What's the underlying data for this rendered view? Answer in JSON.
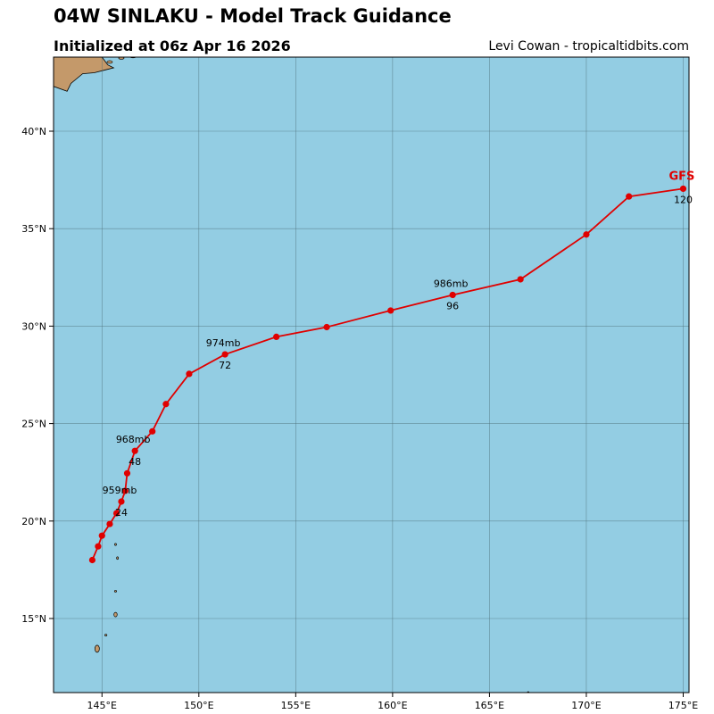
{
  "header": {
    "title": "04W SINLAKU - Model Track Guidance",
    "subtitle": "Initialized at 06z Apr 16 2026",
    "credit": "Levi Cowan - tropicaltidbits.com"
  },
  "colors": {
    "ocean": "#93cde3",
    "land": "#c4996a",
    "track": "#e00000",
    "model_label": "#e00000",
    "grid": "#4d6f78"
  },
  "map": {
    "projection": "equirectangular",
    "lon_range": [
      142.5,
      175.3
    ],
    "lat_range": [
      11.2,
      43.8
    ],
    "lon_ticks": [
      145,
      150,
      155,
      160,
      165,
      170,
      175
    ],
    "lon_tick_labels": [
      "145°E",
      "150°E",
      "155°E",
      "160°E",
      "165°E",
      "170°E",
      "175°E"
    ],
    "lat_ticks": [
      15,
      20,
      25,
      30,
      35,
      40
    ],
    "lat_tick_labels": [
      "15°N",
      "20°N",
      "25°N",
      "30°N",
      "35°N",
      "40°N"
    ],
    "grid": true
  },
  "chart_data": {
    "type": "line",
    "series": [
      {
        "name": "GFS",
        "points": [
          {
            "lon": 144.5,
            "lat": 18.0
          },
          {
            "lon": 144.8,
            "lat": 18.7
          },
          {
            "lon": 145.0,
            "lat": 19.25
          },
          {
            "lon": 145.4,
            "lat": 19.85
          },
          {
            "lon": 145.75,
            "lat": 20.4
          },
          {
            "lon": 146.0,
            "lat": 21.0
          },
          {
            "lon": 146.2,
            "lat": 21.55
          },
          {
            "lon": 146.3,
            "lat": 22.45
          },
          {
            "lon": 146.7,
            "lat": 23.6
          },
          {
            "lon": 147.6,
            "lat": 24.6
          },
          {
            "lon": 148.3,
            "lat": 26.0
          },
          {
            "lon": 149.5,
            "lat": 27.55
          },
          {
            "lon": 151.35,
            "lat": 28.55
          },
          {
            "lon": 154.0,
            "lat": 29.45
          },
          {
            "lon": 156.6,
            "lat": 29.95
          },
          {
            "lon": 159.9,
            "lat": 30.8
          },
          {
            "lon": 163.1,
            "lat": 31.6
          },
          {
            "lon": 166.6,
            "lat": 32.4
          },
          {
            "lon": 170.0,
            "lat": 34.7
          },
          {
            "lon": 172.2,
            "lat": 36.65
          },
          {
            "lon": 175.0,
            "lat": 37.05
          }
        ],
        "annotations": [
          {
            "point_index": 5,
            "pressure": "959mb",
            "hour": "24"
          },
          {
            "point_index": 8,
            "pressure": "968mb",
            "hour": "48"
          },
          {
            "point_index": 12,
            "pressure": "974mb",
            "hour": "72"
          },
          {
            "point_index": 16,
            "pressure": "986mb",
            "hour": "96"
          },
          {
            "point_index": 20,
            "pressure": "",
            "hour": "120"
          }
        ]
      }
    ]
  }
}
